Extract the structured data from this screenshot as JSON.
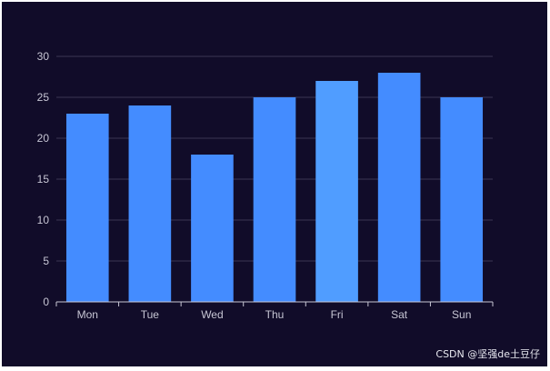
{
  "chart_data": {
    "type": "bar",
    "categories": [
      "Mon",
      "Tue",
      "Wed",
      "Thu",
      "Fri",
      "Sat",
      "Sun"
    ],
    "values": [
      23,
      24,
      18,
      25,
      27,
      28,
      25
    ],
    "ylim": [
      0,
      30
    ],
    "yticks": [
      "0",
      "5",
      "10",
      "15",
      "20",
      "25",
      "30"
    ],
    "grid": true,
    "legend": "none"
  },
  "colors": {
    "background": "#110c29",
    "bar": "#448cff",
    "bar_highlight": "#509dff",
    "grid": "#3a3654",
    "axis": "#c7c6d4"
  },
  "watermark": "CSDN @坚强de土豆仔"
}
